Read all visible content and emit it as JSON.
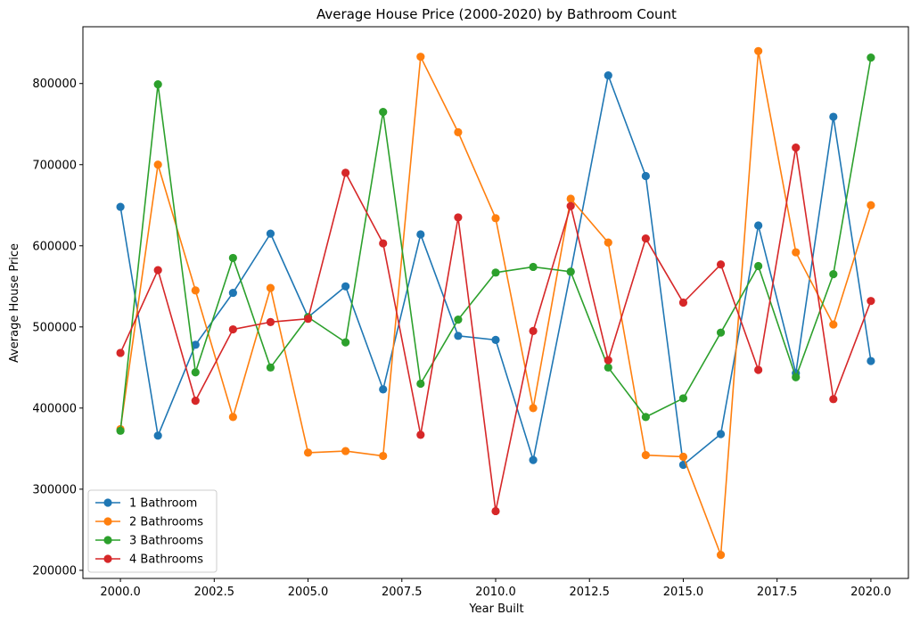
{
  "chart_data": {
    "type": "line",
    "title": "Average House Price (2000-2020) by Bathroom Count",
    "xlabel": "Year Built",
    "ylabel": "Average House Price",
    "x": [
      2000,
      2001,
      2002,
      2003,
      2004,
      2005,
      2006,
      2007,
      2008,
      2009,
      2010,
      2011,
      2012,
      2013,
      2014,
      2015,
      2016,
      2017,
      2018,
      2019,
      2020
    ],
    "xlim": [
      1999,
      2021
    ],
    "ylim": [
      190000,
      870000
    ],
    "xticks": [
      2000.0,
      2002.5,
      2005.0,
      2007.5,
      2010.0,
      2012.5,
      2015.0,
      2017.5,
      2020.0
    ],
    "xtick_labels": [
      "2000.0",
      "2002.5",
      "2005.0",
      "2007.5",
      "2010.0",
      "2012.5",
      "2015.0",
      "2017.5",
      "2020.0"
    ],
    "yticks": [
      200000,
      300000,
      400000,
      500000,
      600000,
      700000,
      800000
    ],
    "ytick_labels": [
      "200000",
      "300000",
      "400000",
      "500000",
      "600000",
      "700000",
      "800000"
    ],
    "grid": false,
    "legend_position": "lower-left",
    "series": [
      {
        "name": "1 Bathroom",
        "color": "#1f77b4",
        "values": [
          648000,
          366000,
          478000,
          542000,
          615000,
          512000,
          550000,
          423000,
          614000,
          489000,
          484000,
          336000,
          568000,
          810000,
          686000,
          330000,
          368000,
          625000,
          443000,
          759000,
          458000
        ]
      },
      {
        "name": "2 Bathrooms",
        "color": "#ff7f0e",
        "values": [
          374000,
          700000,
          545000,
          389000,
          548000,
          345000,
          347000,
          341000,
          833000,
          740000,
          634000,
          400000,
          658000,
          604000,
          342000,
          340000,
          219000,
          840000,
          592000,
          503000,
          650000
        ]
      },
      {
        "name": "3 Bathrooms",
        "color": "#2ca02c",
        "values": [
          372000,
          799000,
          444000,
          585000,
          450000,
          512000,
          481000,
          765000,
          430000,
          509000,
          567000,
          574000,
          568000,
          450000,
          389000,
          412000,
          493000,
          575000,
          438000,
          565000,
          832000
        ]
      },
      {
        "name": "4 Bathrooms",
        "color": "#d62728",
        "values": [
          468000,
          570000,
          409000,
          497000,
          506000,
          510000,
          690000,
          603000,
          367000,
          635000,
          273000,
          495000,
          649000,
          459000,
          609000,
          530000,
          577000,
          447000,
          721000,
          411000,
          532000
        ]
      }
    ]
  }
}
